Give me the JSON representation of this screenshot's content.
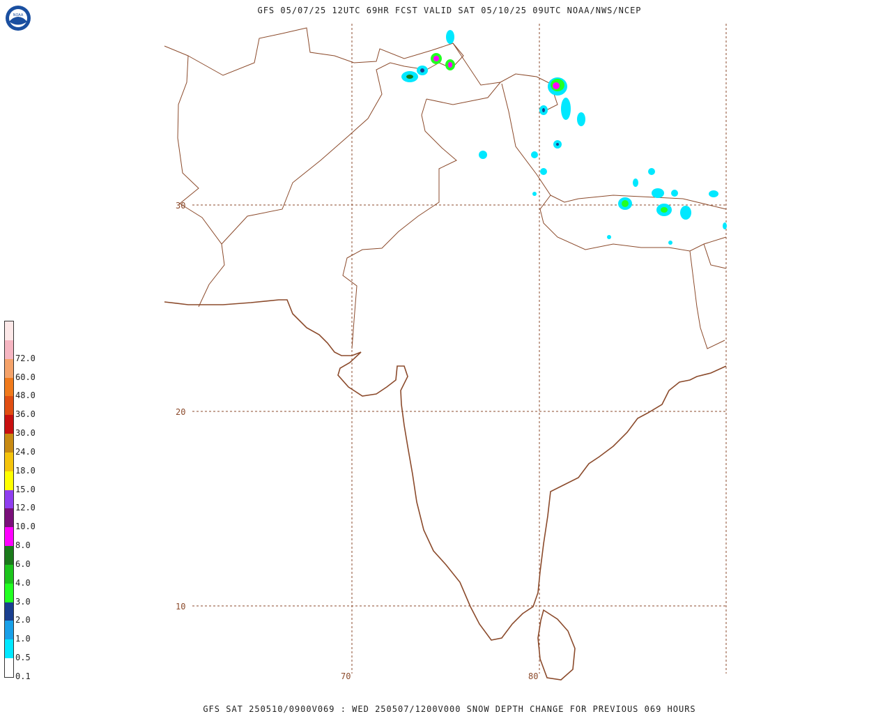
{
  "title": "GFS 05/07/25 12UTC 69HR FCST VALID SAT 05/10/25 09UTC NOAA/NWS/NCEP",
  "footer": "GFS SAT 250510/0900V069 : WED 250507/1200V000 SNOW DEPTH CHANGE FOR PREVIOUS 069 HOURS",
  "logo": {
    "icon": "noaa-logo",
    "text": "NOAA",
    "colors": {
      "outer": "#1a4fa0",
      "inner": "#ffffff",
      "bird": "#1a4fa0"
    }
  },
  "map": {
    "lat_labels": [
      "30",
      "20",
      "10"
    ],
    "lon_labels": [
      "70",
      "80"
    ],
    "border_color": "#8b4a2b",
    "grid_color": "#8b4a2b"
  },
  "legend": {
    "items": [
      {
        "label": "",
        "color": "#fce8e8"
      },
      {
        "label": "72.0",
        "color": "#f6b6c2"
      },
      {
        "label": "60.0",
        "color": "#f5a36a"
      },
      {
        "label": "48.0",
        "color": "#f07a1c"
      },
      {
        "label": "36.0",
        "color": "#e04e12"
      },
      {
        "label": "30.0",
        "color": "#c81010"
      },
      {
        "label": "24.0",
        "color": "#c88a12"
      },
      {
        "label": "18.0",
        "color": "#f4c40c"
      },
      {
        "label": "15.0",
        "color": "#ffff00"
      },
      {
        "label": "12.0",
        "color": "#8f3ef0"
      },
      {
        "label": "10.0",
        "color": "#7a0f7a"
      },
      {
        "label": "8.0",
        "color": "#ff00ff"
      },
      {
        "label": "6.0",
        "color": "#1a7a1a"
      },
      {
        "label": "4.0",
        "color": "#1cc41c"
      },
      {
        "label": "3.0",
        "color": "#22ff22"
      },
      {
        "label": "2.0",
        "color": "#1a3f8f"
      },
      {
        "label": "1.0",
        "color": "#19a0e8"
      },
      {
        "label": "0.5",
        "color": "#00e8ff"
      },
      {
        "label": "0.1",
        "color": "#ffffff"
      }
    ]
  }
}
